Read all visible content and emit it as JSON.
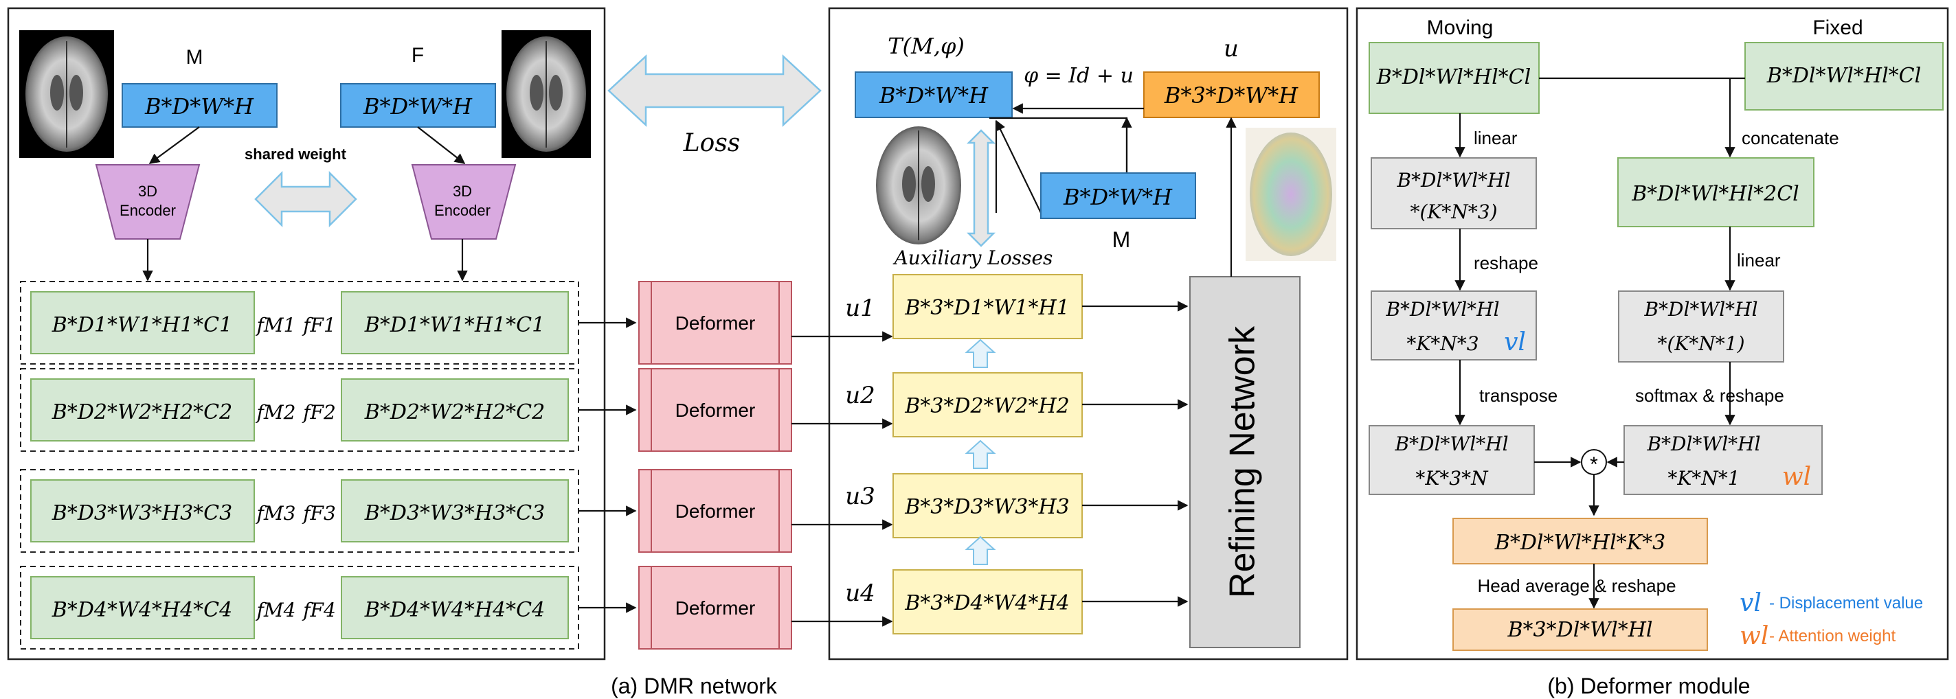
{
  "caption_a": "(a) DMR network",
  "caption_b": "(b) Deformer module",
  "panel_a": {
    "label_M": "M",
    "label_F": "F",
    "input_M": "B*D*W*H",
    "input_F": "B*D*W*H",
    "encoder_label_line1": "3D",
    "encoder_label_line2": "Encoder",
    "shared_weight": "shared weight",
    "features_M": [
      "B*D1*W1*H1*C1",
      "B*D2*W2*H2*C2",
      "B*D3*W3*H3*C3",
      "B*D4*W4*H4*C4"
    ],
    "features_F": [
      "B*D1*W1*H1*C1",
      "B*D2*W2*H2*C2",
      "B*D3*W3*H3*C3",
      "B*D4*W4*H4*C4"
    ],
    "feat_labels_M": [
      "fM1",
      "fM2",
      "fM3",
      "fM4"
    ],
    "feat_labels_F": [
      "fF1",
      "fF2",
      "fF3",
      "fF4"
    ]
  },
  "middle": {
    "loss_label": "Loss",
    "deformer_label": "Deformer",
    "warped_label": "T(M,φ)",
    "warped_box": "B*D*W*H",
    "phi_label": "φ = Id + u",
    "u_label": "u",
    "u_box": "B*3*D*W*H",
    "moving_box": "B*D*W*H",
    "moving_label": "M",
    "aux_losses": "Auxiliary Losses",
    "refining": "Refining Network",
    "u_levels": [
      "u1",
      "u2",
      "u3",
      "u4"
    ],
    "u_boxes": [
      "B*3*D1*W1*H1",
      "B*3*D2*W2*H2",
      "B*3*D3*W3*H3",
      "B*3*D4*W4*H4"
    ]
  },
  "panel_b": {
    "moving": "Moving",
    "fixed": "Fixed",
    "moving_box": "B*Dl*Wl*Hl*Cl",
    "fixed_box": "B*Dl*Wl*Hl*Cl",
    "linear_1": "linear",
    "concatenate": "concatenate",
    "linear_box_l1": "B*Dl*Wl*Hl",
    "linear_box_l2": "*(K*N*3)",
    "concat_box": "B*Dl*Wl*Hl*2Cl",
    "reshape": "reshape",
    "linear_2": "linear",
    "v_box_l1": "B*Dl*Wl*Hl",
    "v_box_l2": "*K*N*3",
    "v_label": "vl",
    "w_lin_l1": "B*Dl*Wl*Hl",
    "w_lin_l2": "*(K*N*1)",
    "transpose": "transpose",
    "softmax": "softmax & reshape",
    "t_box_l1": "B*Dl*Wl*Hl",
    "t_box_l2": "*K*3*N",
    "w_box_l1": "B*Dl*Wl*Hl",
    "w_box_l2": "*K*N*1",
    "w_label": "wl",
    "mult": "*",
    "prod_box": "B*Dl*Wl*Hl*K*3",
    "head_avg": "Head average & reshape",
    "out_box": "B*3*Dl*Wl*Hl",
    "legend_v": "- Displacement value",
    "legend_w": "- Attention weight"
  },
  "colors": {
    "green": "#d5e8d4",
    "blue": "#5aaef0",
    "orange": "#fdb34d",
    "yellow": "#fff6c4",
    "pink": "#f7c6cc",
    "violet": "#d9aae0",
    "v_color": "#1f7fe0",
    "w_color": "#f07a2a"
  }
}
